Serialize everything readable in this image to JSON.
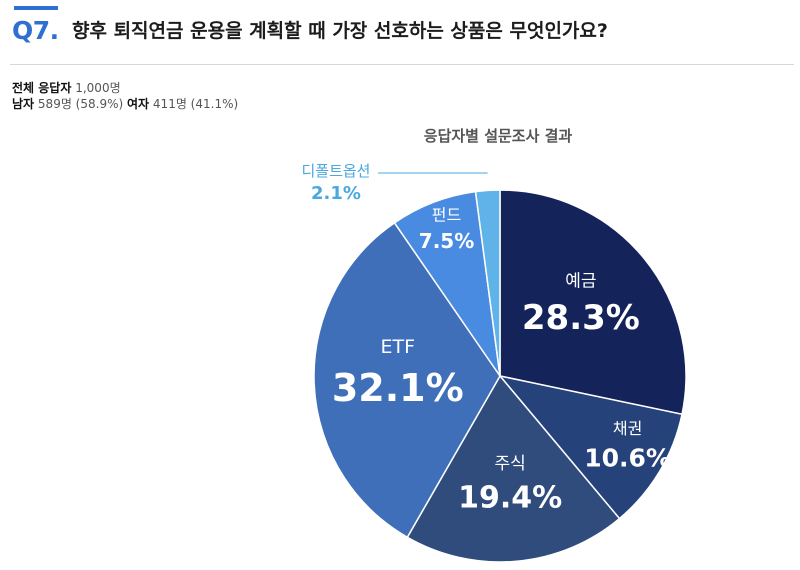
{
  "header": {
    "question_number": "Q7.",
    "question_text": "향후 퇴직연금 운용을 계획할 때 가장 선호하는 상품은 무엇인가요?"
  },
  "respondents": {
    "total_label": "전체 응답자",
    "total_value": "1,000명",
    "male_label": "남자",
    "male_value": "589명 (58.9%)",
    "female_label": "여자",
    "female_value": "411명 (41.1%)"
  },
  "chart_data": {
    "type": "pie",
    "title": "응답자별 설문조사 결과",
    "start_angle_deg": 0,
    "direction": "clockwise",
    "slices": [
      {
        "label": "예금",
        "value": 28.3,
        "value_label": "28.3%",
        "color": "#15235b"
      },
      {
        "label": "채권",
        "value": 10.6,
        "value_label": "10.6%",
        "color": "#25427a"
      },
      {
        "label": "주식",
        "value": 19.4,
        "value_label": "19.4%",
        "color": "#2f4c7c"
      },
      {
        "label": "ETF",
        "value": 32.1,
        "value_label": "32.1%",
        "color": "#3e6fb8"
      },
      {
        "label": "펀드",
        "value": 7.5,
        "value_label": "7.5%",
        "color": "#4a8be2"
      },
      {
        "label": "디폴트옵션",
        "value": 2.1,
        "value_label": "2.1%",
        "color": "#5fb3e8"
      }
    ],
    "label_text_color": "#ffffff",
    "outside_label_color": "#4aa8e0"
  }
}
